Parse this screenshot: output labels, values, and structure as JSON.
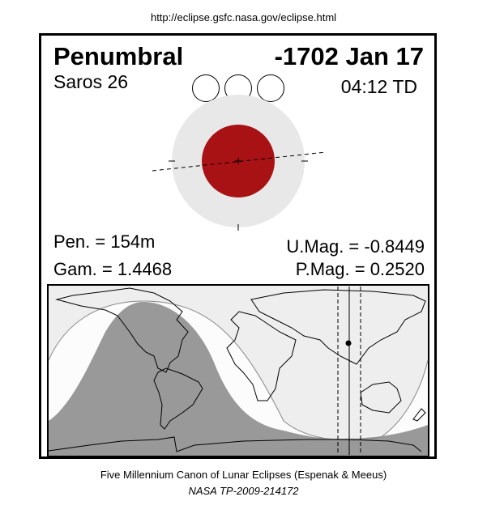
{
  "url": "http://eclipse.gsfc.nasa.gov/eclipse.html",
  "eclipse": {
    "type": "Penumbral",
    "date": "-1702 Jan 17",
    "saros": "Saros  26",
    "time": "04:12 TD",
    "pen_duration": "Pen. = 154m",
    "gamma": "Gam. = 1.4468",
    "umbral_magnitude": "U.Mag. = -0.8449",
    "penumbral_magnitude": "P.Mag. = 0.2520"
  },
  "colors": {
    "umbra": "#a81214",
    "penumbra": "#e8e8e8",
    "night_zone": "#999999",
    "partial_visibility": "#eeeeee"
  },
  "caption": {
    "line1": "Five Millennium Canon of Lunar Eclipses (Espenak & Meeus)",
    "line2": "NASA TP-2009-214172"
  }
}
